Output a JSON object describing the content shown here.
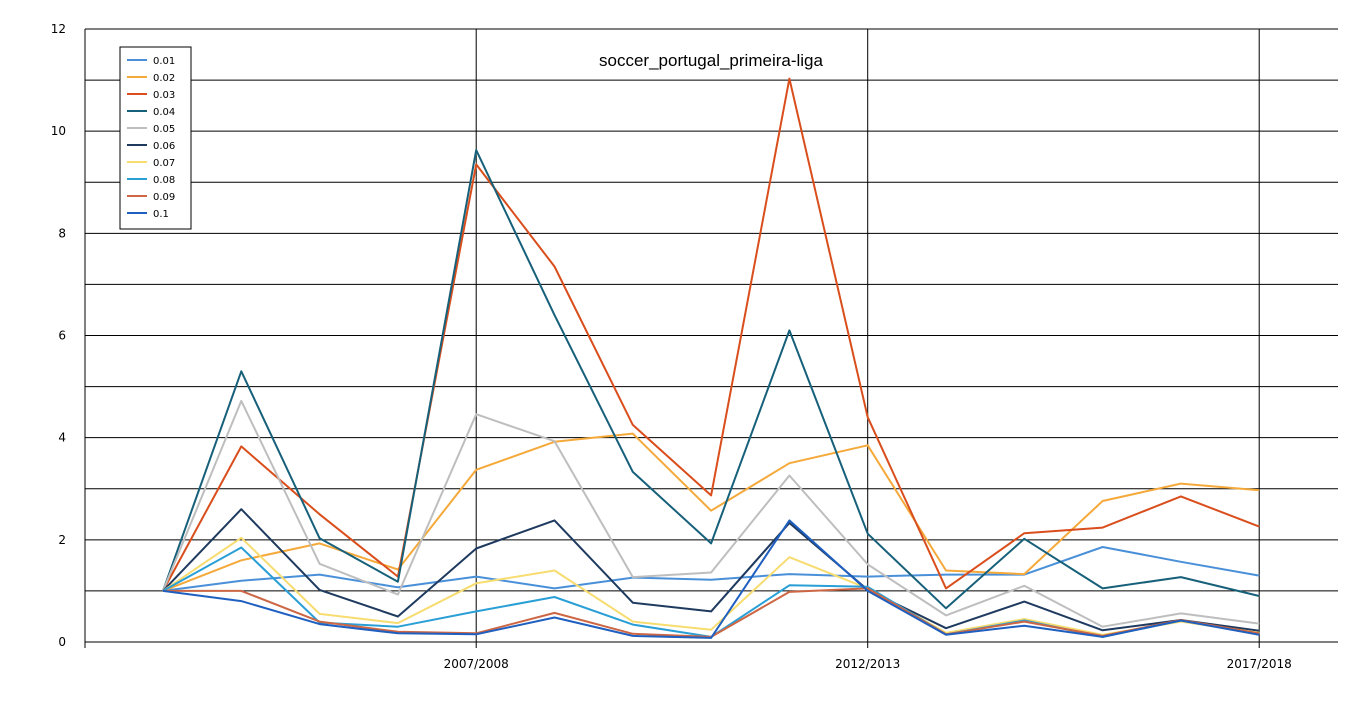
{
  "chart_data": {
    "type": "line",
    "title": "soccer_portugal_primeira-liga",
    "xlabel": "",
    "ylabel": "",
    "ylim": [
      0,
      12
    ],
    "yticks": [
      "0",
      "2",
      "4",
      "6",
      "8",
      "10",
      "12"
    ],
    "x_tick_labels": [
      "2007/2008",
      "2012/2013",
      "2017/2018"
    ],
    "grid": true,
    "legend": "top-left",
    "series": [
      {
        "name": "0.01",
        "color": "#4a90d9",
        "values": [
          1.0,
          1.2,
          1.32,
          1.07,
          1.28,
          1.05,
          1.26,
          1.22,
          1.33,
          1.28,
          1.32,
          1.32,
          1.86,
          1.57,
          1.3
        ]
      },
      {
        "name": "0.02",
        "color": "#f5a93a",
        "values": [
          1.0,
          1.6,
          1.93,
          1.42,
          3.37,
          3.92,
          4.08,
          2.57,
          3.5,
          3.85,
          1.4,
          1.33,
          2.76,
          3.1,
          2.97
        ]
      },
      {
        "name": "0.03",
        "color": "#d94e1c",
        "values": [
          1.0,
          3.83,
          2.5,
          1.28,
          9.35,
          7.35,
          4.25,
          2.87,
          11.03,
          4.4,
          1.05,
          2.13,
          2.24,
          2.85,
          2.26
        ]
      },
      {
        "name": "0.04",
        "color": "#17607a",
        "values": [
          1.0,
          5.3,
          2.03,
          1.18,
          9.63,
          6.4,
          3.33,
          1.93,
          6.1,
          2.12,
          0.66,
          2.02,
          1.05,
          1.27,
          0.9
        ]
      },
      {
        "name": "0.05",
        "color": "#bebebe",
        "values": [
          1.0,
          4.72,
          1.53,
          0.93,
          4.46,
          3.93,
          1.27,
          1.36,
          3.26,
          1.52,
          0.52,
          1.1,
          0.3,
          0.56,
          0.36
        ]
      },
      {
        "name": "0.06",
        "color": "#1f3a5f",
        "values": [
          1.0,
          2.6,
          1.02,
          0.5,
          1.83,
          2.38,
          0.77,
          0.6,
          2.33,
          1.02,
          0.27,
          0.79,
          0.23,
          0.43,
          0.22
        ]
      },
      {
        "name": "0.07",
        "color": "#f7dc6f",
        "values": [
          1.0,
          2.04,
          0.55,
          0.37,
          1.15,
          1.4,
          0.4,
          0.24,
          1.66,
          1.05,
          0.18,
          0.45,
          0.14,
          0.4,
          0.18
        ]
      },
      {
        "name": "0.08",
        "color": "#2a9fd6",
        "values": [
          1.0,
          1.85,
          0.38,
          0.3,
          0.6,
          0.88,
          0.34,
          0.1,
          1.11,
          1.08,
          0.15,
          0.42,
          0.1,
          0.42,
          0.16
        ]
      },
      {
        "name": "0.09",
        "color": "#cc6644",
        "values": [
          1.0,
          1.0,
          0.4,
          0.2,
          0.17,
          0.57,
          0.16,
          0.1,
          0.98,
          1.05,
          0.15,
          0.4,
          0.12,
          0.43,
          0.17
        ]
      },
      {
        "name": "0.1",
        "color": "#1f5fbf",
        "values": [
          1.0,
          0.8,
          0.35,
          0.17,
          0.15,
          0.48,
          0.12,
          0.08,
          2.38,
          1.0,
          0.14,
          0.32,
          0.1,
          0.42,
          0.14
        ]
      }
    ]
  }
}
